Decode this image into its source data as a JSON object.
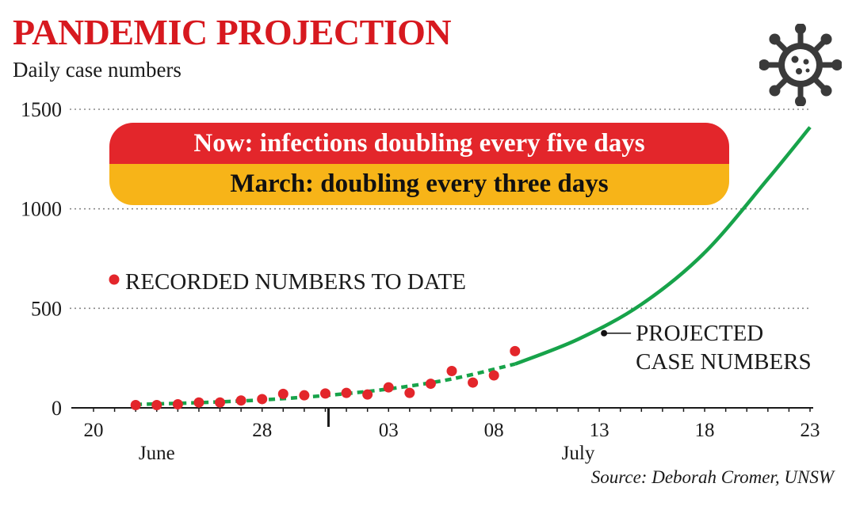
{
  "header": {
    "title": "PANDEMIC PROJECTION",
    "subtitle": "Daily case numbers"
  },
  "banner": {
    "top_text": "Now: infections doubling every five days",
    "bottom_text": "March: doubling every three days",
    "top_color": "#e3262b",
    "bottom_color": "#f7b418"
  },
  "icons": {
    "corner": "virus-icon"
  },
  "source": "Source: Deborah Cromer, UNSW",
  "chart_data": {
    "type": "scatter",
    "x_axis": {
      "tick_labels": [
        "20",
        "28",
        "03",
        "08",
        "13",
        "18",
        "23"
      ],
      "tick_days": [
        0,
        8,
        14,
        19,
        24,
        29,
        34
      ],
      "month_labels": [
        {
          "label": "June",
          "day": 3
        },
        {
          "label": "July",
          "day": 23
        }
      ],
      "month_divider_day": 11,
      "xlim": [
        0,
        34
      ]
    },
    "y_axis": {
      "tick_labels": [
        "0",
        "500",
        "1000",
        "1500"
      ],
      "ticks": [
        0,
        500,
        1000,
        1500
      ],
      "ylim": [
        0,
        1500
      ]
    },
    "grid": "horizontal dotted",
    "series": [
      {
        "name": "RECORDED NUMBERS TO DATE",
        "kind": "points",
        "color": "#e3262b",
        "points": [
          {
            "x": 2,
            "y": 14
          },
          {
            "x": 3,
            "y": 14
          },
          {
            "x": 4,
            "y": 18
          },
          {
            "x": 5,
            "y": 27
          },
          {
            "x": 6,
            "y": 27
          },
          {
            "x": 7,
            "y": 37
          },
          {
            "x": 8,
            "y": 44
          },
          {
            "x": 9,
            "y": 70
          },
          {
            "x": 10,
            "y": 63
          },
          {
            "x": 11,
            "y": 72
          },
          {
            "x": 12,
            "y": 75
          },
          {
            "x": 13,
            "y": 67
          },
          {
            "x": 14,
            "y": 103
          },
          {
            "x": 15,
            "y": 75
          },
          {
            "x": 16,
            "y": 121
          },
          {
            "x": 17,
            "y": 185
          },
          {
            "x": 18,
            "y": 127
          },
          {
            "x": 19,
            "y": 163
          },
          {
            "x": 20,
            "y": 285
          }
        ]
      },
      {
        "name": "PROJECTED CASE NUMBERS",
        "kind": "curve",
        "color": "#17a34a",
        "dashed_until_day": 20,
        "points": [
          {
            "x": 2,
            "y": 17
          },
          {
            "x": 5,
            "y": 26
          },
          {
            "x": 8,
            "y": 40
          },
          {
            "x": 11,
            "y": 62
          },
          {
            "x": 14,
            "y": 95
          },
          {
            "x": 17,
            "y": 145
          },
          {
            "x": 20,
            "y": 220
          },
          {
            "x": 23,
            "y": 345
          },
          {
            "x": 26,
            "y": 520
          },
          {
            "x": 29,
            "y": 780
          },
          {
            "x": 32,
            "y": 1150
          },
          {
            "x": 34,
            "y": 1410
          }
        ]
      }
    ],
    "annotations": [
      {
        "text_lines": [
          "PROJECTED",
          "CASE NUMBERS"
        ],
        "x": 24,
        "y": 375
      }
    ]
  }
}
